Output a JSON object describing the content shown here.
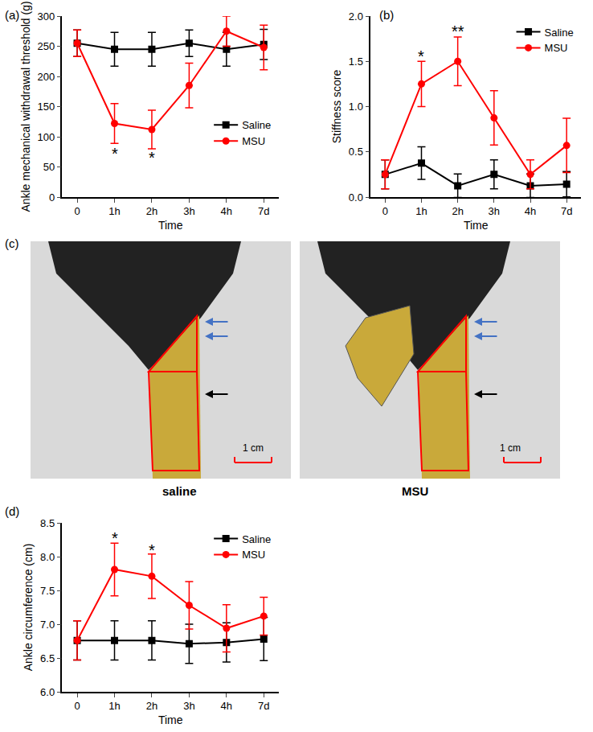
{
  "chart_data": [
    {
      "type": "line",
      "label": "(a)",
      "x_label": "Time",
      "y_label": "Ankle mechanical withdrawal threshold (g)",
      "categories": [
        "0",
        "1h",
        "2h",
        "3h",
        "4h",
        "7d"
      ],
      "series": [
        {
          "name": "Saline",
          "color": "#000000",
          "marker": "square",
          "line_style": "solid",
          "values": [
            255,
            245,
            245,
            255,
            245,
            253
          ],
          "errors": [
            22,
            28,
            28,
            22,
            28,
            25
          ]
        },
        {
          "name": "MSU",
          "color": "#ff0000",
          "marker": "circle",
          "line_style": "solid",
          "values": [
            255,
            122,
            112,
            185,
            275,
            248
          ],
          "errors": [
            22,
            33,
            32,
            37,
            25,
            37
          ]
        }
      ],
      "ylim": [
        0,
        300
      ],
      "yticks": [
        0,
        50,
        100,
        150,
        200,
        250,
        300
      ],
      "annotations": [
        {
          "category": "1h",
          "y": 72,
          "text": "*"
        },
        {
          "category": "2h",
          "y": 65,
          "text": "*"
        }
      ],
      "legend": "lower right",
      "grid": false
    },
    {
      "type": "line",
      "label": "(b)",
      "x_label": "Time",
      "y_label": "Stiffness score",
      "categories": [
        "0",
        "1h",
        "2h",
        "3h",
        "4h",
        "7d"
      ],
      "series": [
        {
          "name": "Saline",
          "color": "#000000",
          "marker": "square",
          "line_style": "solid",
          "values": [
            0.25,
            0.375,
            0.125,
            0.25,
            0.125,
            0.143
          ],
          "errors": [
            0.16,
            0.18,
            0.13,
            0.16,
            0.13,
            0.14
          ]
        },
        {
          "name": "MSU",
          "color": "#ff0000",
          "marker": "circle",
          "line_style": "solid",
          "values": [
            0.25,
            1.25,
            1.5,
            0.875,
            0.25,
            0.57
          ],
          "errors": [
            0.16,
            0.25,
            0.27,
            0.3,
            0.16,
            0.3
          ]
        }
      ],
      "ylim": [
        0,
        2
      ],
      "yticks": [
        {
          "value": 0,
          "label": "0.0"
        },
        {
          "value": 0.5,
          "label": "0.5"
        },
        {
          "value": 1,
          "label": "1.0"
        },
        {
          "value": 1.5,
          "label": "1.5"
        },
        {
          "value": 2,
          "label": "2.0"
        }
      ],
      "annotations": [
        {
          "category": "1h",
          "y": 1.56,
          "text": "*"
        },
        {
          "category": "2h",
          "y": 1.83,
          "text": "**"
        }
      ],
      "legend": "upper right",
      "grid": false
    },
    {
      "type": "line",
      "label": "(d)",
      "x_label": "Time",
      "y_label": "Ankle circumference (cm)",
      "categories": [
        "0",
        "1h",
        "2h",
        "3h",
        "4h",
        "7d"
      ],
      "series": [
        {
          "name": "Saline",
          "color": "#000000",
          "marker": "square",
          "line_style": "solid",
          "values": [
            6.76,
            6.76,
            6.76,
            6.71,
            6.73,
            6.78
          ],
          "errors": [
            0.29,
            0.29,
            0.29,
            0.29,
            0.29,
            0.32
          ]
        },
        {
          "name": "MSU",
          "color": "#ff0000",
          "marker": "circle",
          "line_style": "solid",
          "values": [
            6.76,
            7.81,
            7.71,
            7.28,
            6.94,
            7.12
          ],
          "errors": [
            0.29,
            0.39,
            0.33,
            0.35,
            0.35,
            0.28
          ]
        }
      ],
      "ylim": [
        6,
        8.5
      ],
      "yticks": [
        {
          "value": 6,
          "label": "6.0"
        },
        {
          "value": 6.5,
          "label": "6.5"
        },
        {
          "value": 7,
          "label": "7.0"
        },
        {
          "value": 7.5,
          "label": "7.5"
        },
        {
          "value": 8,
          "label": "8.0"
        },
        {
          "value": 8.5,
          "label": "8.5"
        }
      ],
      "annotations": [
        {
          "category": "1h",
          "y": 8.27,
          "text": "*"
        },
        {
          "category": "2h",
          "y": 8.1,
          "text": "*"
        }
      ],
      "legend": "upper right",
      "grid": false
    }
  ],
  "image_panel": {
    "label": "(c)",
    "images": [
      {
        "caption": "saline",
        "scale_bar": "1 cm"
      },
      {
        "caption": "MSU",
        "scale_bar": "1 cm"
      }
    ]
  }
}
